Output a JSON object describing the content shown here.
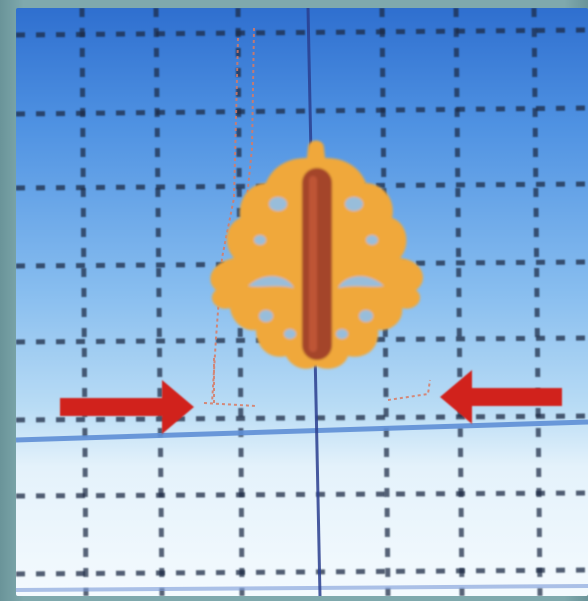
{
  "viewport": {
    "background_top": "#2f6fcf",
    "background_bottom": "#f4fafe",
    "grid_color": "#2a3a55",
    "axis_color": "#2b3f8f",
    "ground_line_color": "#5f8fd6"
  },
  "model": {
    "name": "ornate-hinge-plate",
    "fill_color": "#f0a83a",
    "center_bar_color": "#a4442c",
    "ghost_outline_color": "#d97a63"
  },
  "annotations": {
    "arrow_color": "#d1231a",
    "arrows": [
      "left-arrow",
      "right-arrow"
    ]
  }
}
